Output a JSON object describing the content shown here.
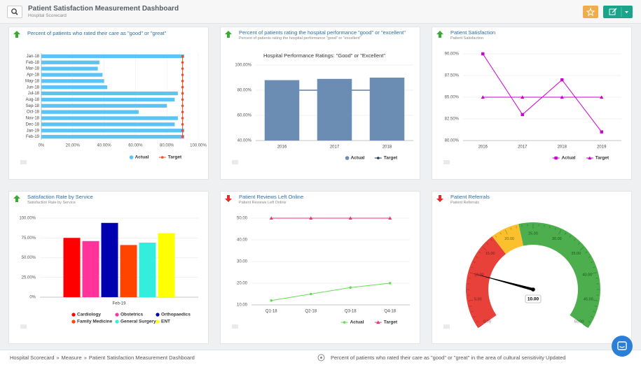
{
  "header": {
    "title": "Patient Satisfaction Measurement Dashboard",
    "subtitle": "Hospital Scorecard"
  },
  "chart_data": [
    {
      "type": "hbar",
      "title": "Percent of patients who rated their care as \"good\" or \"great\"",
      "trend": "up",
      "categories": [
        "Jan-18",
        "Feb-18",
        "Mar-18",
        "Apr-18",
        "May-18",
        "Jun-18",
        "Jul-18",
        "Aug-18",
        "Sep-18",
        "Oct-18",
        "Nov-18",
        "Dec-18",
        "Jan-19",
        "Feb-19"
      ],
      "series": [
        {
          "name": "Actual",
          "color": "#5bc4f5",
          "style": "bar",
          "marker": "circle",
          "values": [
            91,
            37,
            36,
            39,
            40,
            42,
            87,
            85,
            80,
            62,
            87,
            85,
            91,
            91
          ]
        },
        {
          "name": "Target",
          "color": "#e8502a",
          "style": "line",
          "marker": "circle",
          "values": [
            90,
            90,
            90,
            90,
            90,
            90,
            90,
            90,
            90,
            90,
            90,
            90,
            90,
            90
          ]
        }
      ],
      "xlim": [
        0,
        100
      ],
      "xticks": [
        {
          "value": 0,
          "label": "0%"
        },
        {
          "value": 20,
          "label": "20.00%"
        },
        {
          "value": 40,
          "label": "40.00%"
        },
        {
          "value": 60,
          "label": "60.00%"
        },
        {
          "value": 80,
          "label": "80.00%"
        },
        {
          "value": 100,
          "label": "100.00%"
        }
      ],
      "grid": true
    },
    {
      "type": "bar",
      "title": "Percent of patients rating the hospital performance \"good\" or \"excellent\"",
      "subtitle": "Percent of patients rating the hospital performance \"good\" or \"excellent\"",
      "trend": "up",
      "inner_title": "Hospital Performance Ratings: \"Good\" or \"Excellent\"",
      "categories": [
        "2016",
        "2017",
        "2018"
      ],
      "series": [
        {
          "name": "Actual",
          "color": "#6b8db3",
          "style": "bar",
          "marker": "circle",
          "values": [
            88,
            89,
            90
          ]
        },
        {
          "name": "Target",
          "color": "#1f3b5a",
          "style": "line",
          "marker": "circle",
          "values": [
            80,
            80,
            80
          ]
        }
      ],
      "ylim": [
        40,
        100
      ],
      "yticks": [
        {
          "value": 40,
          "label": "40.00%"
        },
        {
          "value": 60,
          "label": "60.00%"
        },
        {
          "value": 80,
          "label": "80.00%"
        },
        {
          "value": 100,
          "label": "100.00%"
        }
      ],
      "grid": true
    },
    {
      "type": "line",
      "title": "Patient Satisfaction",
      "subtitle": "Patient Satisfaction",
      "trend": "up",
      "categories": [
        "2016",
        "2017",
        "2018",
        "2019"
      ],
      "series": [
        {
          "name": "Actual",
          "color": "#cc00cc",
          "style": "line",
          "marker": "square",
          "values": [
            90,
            83,
            87,
            81
          ]
        },
        {
          "name": "Target",
          "color": "#cc00cc",
          "style": "line",
          "marker": "triangle",
          "values": [
            85,
            85,
            85,
            85
          ]
        }
      ],
      "ylim": [
        80,
        90
      ],
      "yticks": [
        {
          "value": 80,
          "label": "80.00%"
        },
        {
          "value": 82.5,
          "label": "82.50%"
        },
        {
          "value": 85,
          "label": "85.00%"
        },
        {
          "value": 87.5,
          "label": "87.50%"
        },
        {
          "value": 90,
          "label": "90.00%"
        }
      ],
      "grid": true
    },
    {
      "type": "bar",
      "title": "Satisfaction Rate by Service",
      "subtitle": "Satisfaction Rate by Service",
      "trend": "up",
      "categories": [
        "Feb-19"
      ],
      "series": [
        {
          "name": "Cardiology",
          "color": "#ff0000",
          "style": "bar",
          "marker": "circle",
          "values": [
            75
          ]
        },
        {
          "name": "Obstetrics",
          "color": "#ff3399",
          "style": "bar",
          "marker": "circle",
          "values": [
            71
          ]
        },
        {
          "name": "Orthopaedics",
          "color": "#0000b0",
          "style": "bar",
          "marker": "circle",
          "values": [
            94
          ]
        },
        {
          "name": "Family Medicine",
          "color": "#ff4400",
          "style": "bar",
          "marker": "circle",
          "values": [
            66
          ]
        },
        {
          "name": "General Surgery",
          "color": "#33eedd",
          "style": "bar",
          "marker": "circle",
          "values": [
            69
          ]
        },
        {
          "name": "ENT",
          "color": "#ffff00",
          "style": "bar",
          "marker": "circle",
          "values": [
            81
          ]
        }
      ],
      "ylim": [
        0,
        100
      ],
      "yticks": [
        {
          "value": 0,
          "label": "0%"
        },
        {
          "value": 25,
          "label": "25.00%"
        },
        {
          "value": 50,
          "label": "50.00%"
        },
        {
          "value": 75,
          "label": "75.00%"
        },
        {
          "value": 100,
          "label": "100.00%"
        }
      ],
      "grid": true
    },
    {
      "type": "line",
      "title": "Patient Reviews Left Online",
      "subtitle": "Patient Reviews Left Online",
      "trend": "down",
      "categories": [
        "Q1-18",
        "Q2-18",
        "Q3-18",
        "Q4-18"
      ],
      "series": [
        {
          "name": "Actual",
          "color": "#66dd55",
          "style": "line",
          "marker": "circle",
          "values": [
            12,
            15,
            18,
            20
          ]
        },
        {
          "name": "Target",
          "color": "#ee3377",
          "style": "line",
          "marker": "triangle",
          "values": [
            50,
            50,
            50,
            50
          ]
        }
      ],
      "ylim": [
        10,
        50
      ],
      "yticks": [
        {
          "value": 10,
          "label": "10.00"
        },
        {
          "value": 20,
          "label": "20.00"
        },
        {
          "value": 30,
          "label": "30.00"
        },
        {
          "value": 40,
          "label": "40.00"
        },
        {
          "value": 50,
          "label": "50.00"
        }
      ],
      "grid": true
    },
    {
      "type": "gauge",
      "title": "Patient Referrals",
      "subtitle": "Patient Referrals",
      "trend": "down",
      "value": 10,
      "value_label": "10.00",
      "lim": [
        0,
        50
      ],
      "ticks": [
        {
          "value": 0,
          "label": "0.00"
        },
        {
          "value": 5,
          "label": "5.00"
        },
        {
          "value": 10,
          "label": "10.00"
        },
        {
          "value": 15,
          "label": "15.00"
        },
        {
          "value": 20,
          "label": "20.00"
        },
        {
          "value": 25,
          "label": "25.00"
        },
        {
          "value": 30,
          "label": "30.00"
        },
        {
          "value": 35,
          "label": "35.00"
        },
        {
          "value": 40,
          "label": "40.00"
        },
        {
          "value": 45,
          "label": "45.00"
        },
        {
          "value": 50,
          "label": "50.00"
        }
      ],
      "bands": [
        {
          "from": 0,
          "to": 17.5,
          "color": "#e8413a"
        },
        {
          "from": 17.5,
          "to": 22.5,
          "color": "#fbc02d"
        },
        {
          "from": 22.5,
          "to": 50,
          "color": "#4cae4c"
        }
      ]
    }
  ],
  "footer": {
    "breadcrumb": [
      "Hospital Scorecard",
      "Measure",
      "Patient Satisfaction Measurement Dashboard"
    ],
    "separator": "»",
    "notification": "Percent of patients who rated their care as \"good\" or \"great\" in the area of cultural sensitivity Updated"
  }
}
